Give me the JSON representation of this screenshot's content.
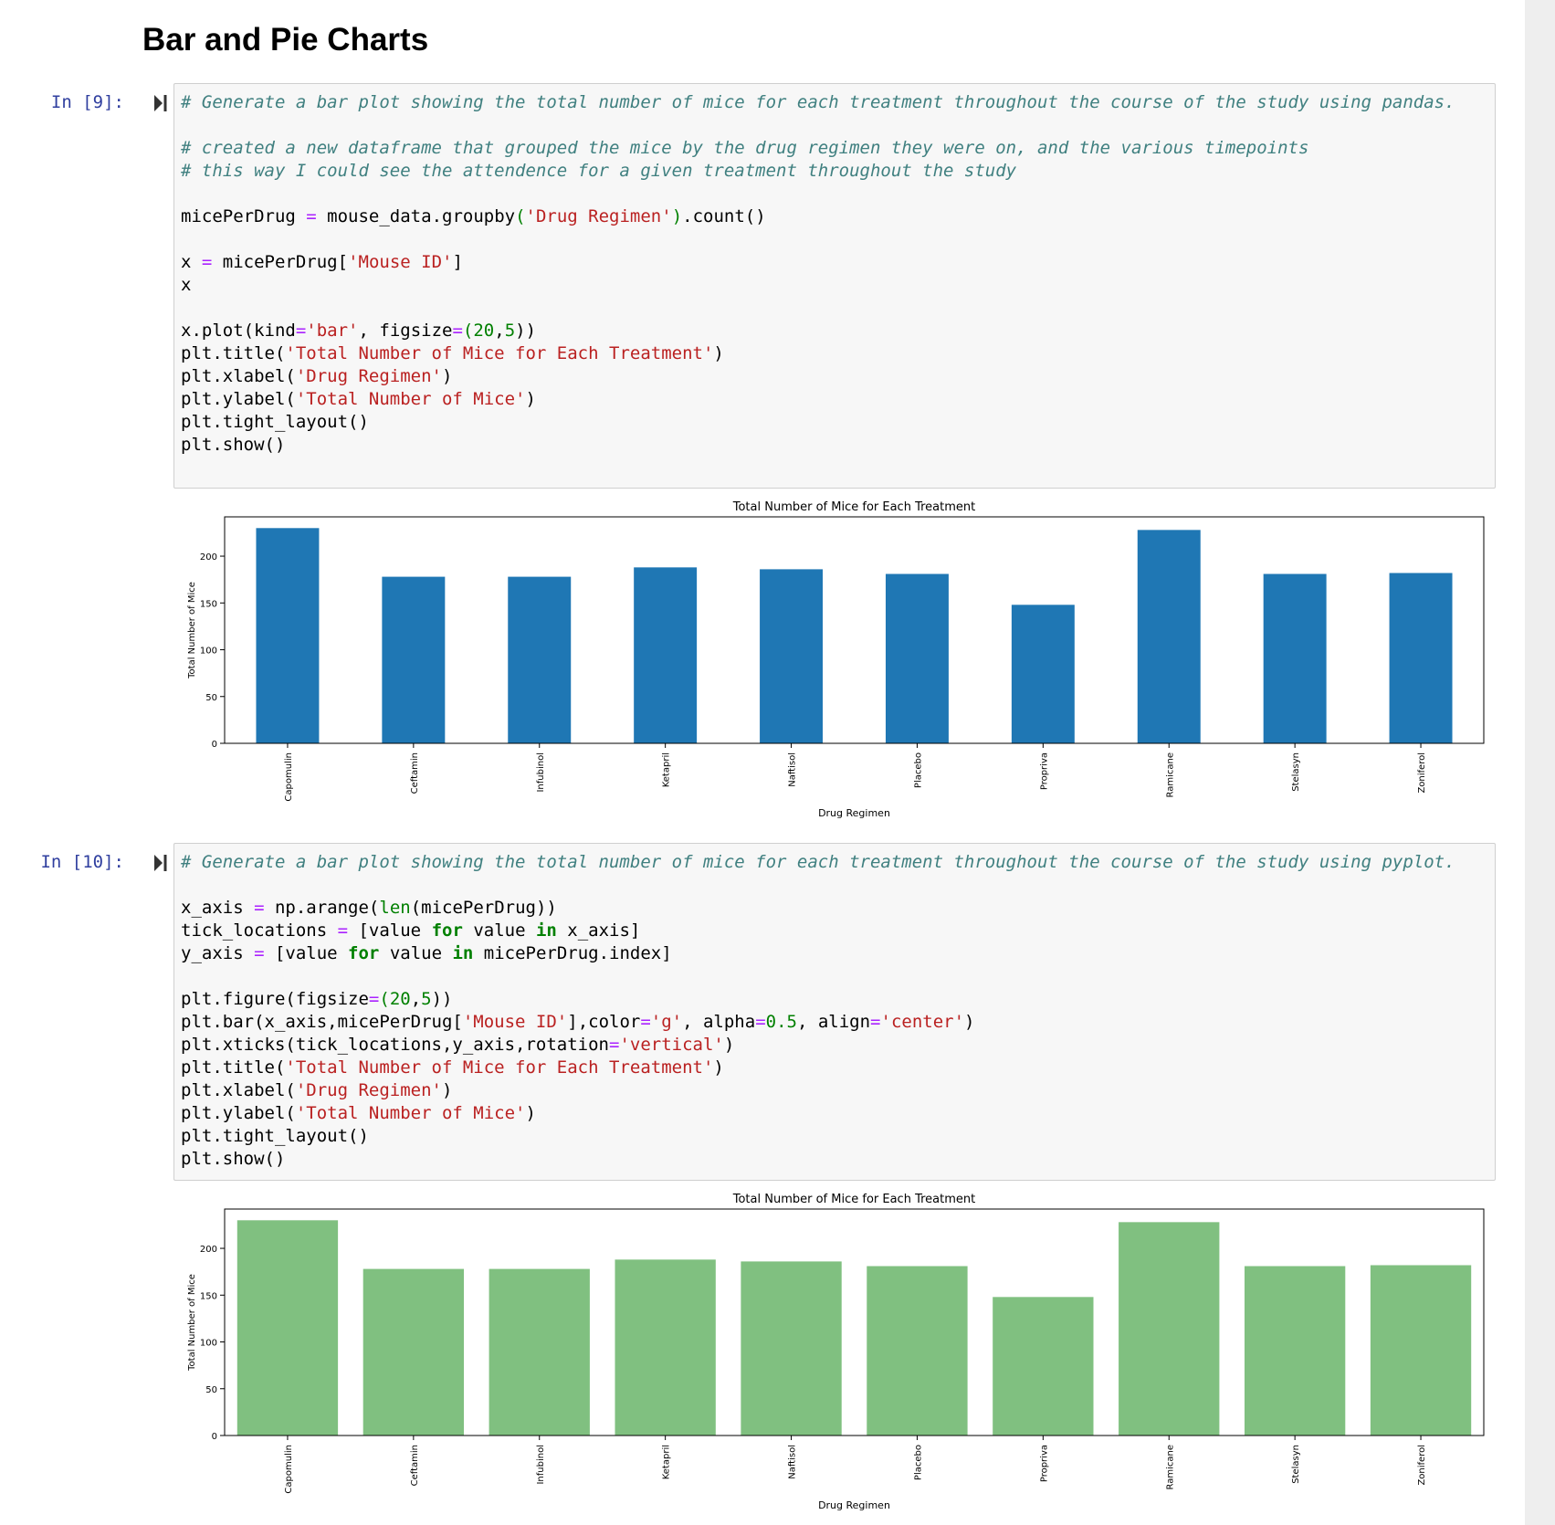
{
  "section_title": "Bar and Pie Charts",
  "cells": [
    {
      "prompt": "In [9]:",
      "code_lines": [
        [
          [
            "comment",
            "# Generate a bar plot showing the total number of mice for each treatment throughout the course of the study using pandas."
          ]
        ],
        [],
        [
          [
            "comment",
            "# created a new dataframe that grouped the mice by the drug regimen they were on, and the various timepoints"
          ]
        ],
        [
          [
            "comment",
            "# this way I could see the attendence for a given treatment throughout the study"
          ]
        ],
        [],
        [
          [
            "",
            "micePerDrug "
          ],
          [
            "op",
            "="
          ],
          [
            "",
            " mouse_data.groupby"
          ],
          [
            "num",
            "("
          ],
          [
            "str",
            "'Drug Regimen'"
          ],
          [
            "num",
            ")"
          ],
          [
            "",
            ".count()"
          ]
        ],
        [],
        [
          [
            "",
            "x "
          ],
          [
            "op",
            "="
          ],
          [
            "",
            " micePerDrug["
          ],
          [
            "str",
            "'Mouse ID'"
          ],
          [
            "",
            "]"
          ]
        ],
        [
          [
            "",
            "x"
          ]
        ],
        [],
        [
          [
            "",
            "x.plot(kind"
          ],
          [
            "op",
            "="
          ],
          [
            "str",
            "'bar'"
          ],
          [
            "",
            ", figsize"
          ],
          [
            "op",
            "="
          ],
          [
            "num",
            "("
          ],
          [
            "num",
            "20"
          ],
          [
            "",
            ","
          ],
          [
            "num",
            "5"
          ],
          [
            "",
            "))"
          ]
        ],
        [
          [
            "",
            "plt.title("
          ],
          [
            "str",
            "'Total Number of Mice for Each Treatment'"
          ],
          [
            "",
            ")"
          ]
        ],
        [
          [
            "",
            "plt.xlabel("
          ],
          [
            "str",
            "'Drug Regimen'"
          ],
          [
            "",
            ")"
          ]
        ],
        [
          [
            "",
            "plt.ylabel("
          ],
          [
            "str",
            "'Total Number of Mice'"
          ],
          [
            "",
            ")"
          ]
        ],
        [
          [
            "",
            "plt.tight_layout()"
          ]
        ],
        [
          [
            "",
            "plt.show()"
          ]
        ]
      ]
    },
    {
      "prompt": "In [10]:",
      "code_lines": [
        [
          [
            "comment",
            "# Generate a bar plot showing the total number of mice for each treatment throughout the course of the study using pyplot."
          ]
        ],
        [],
        [
          [
            "",
            "x_axis "
          ],
          [
            "op",
            "="
          ],
          [
            "",
            " np.arange("
          ],
          [
            "bi",
            "len"
          ],
          [
            "",
            "(micePerDrug))"
          ]
        ],
        [
          [
            "",
            "tick_locations "
          ],
          [
            "op",
            "="
          ],
          [
            "",
            " [value "
          ],
          [
            "kw",
            "for"
          ],
          [
            "",
            " value "
          ],
          [
            "kw",
            "in"
          ],
          [
            "",
            " x_axis]"
          ]
        ],
        [
          [
            "",
            "y_axis "
          ],
          [
            "op",
            "="
          ],
          [
            "",
            " [value "
          ],
          [
            "kw",
            "for"
          ],
          [
            "",
            " value "
          ],
          [
            "kw",
            "in"
          ],
          [
            "",
            " micePerDrug.index]"
          ]
        ],
        [],
        [
          [
            "",
            "plt.figure(figsize"
          ],
          [
            "op",
            "="
          ],
          [
            "num",
            "("
          ],
          [
            "num",
            "20"
          ],
          [
            "",
            ","
          ],
          [
            "num",
            "5"
          ],
          [
            "",
            "))"
          ]
        ],
        [
          [
            "",
            "plt.bar(x_axis,micePerDrug["
          ],
          [
            "str",
            "'Mouse ID'"
          ],
          [
            "",
            "],color"
          ],
          [
            "op",
            "="
          ],
          [
            "str",
            "'g'"
          ],
          [
            "",
            ", alpha"
          ],
          [
            "op",
            "="
          ],
          [
            "num",
            "0.5"
          ],
          [
            "",
            ", align"
          ],
          [
            "op",
            "="
          ],
          [
            "str",
            "'center'"
          ],
          [
            "",
            ")"
          ]
        ],
        [
          [
            "",
            "plt.xticks(tick_locations,y_axis,rotation"
          ],
          [
            "op",
            "="
          ],
          [
            "str",
            "'vertical'"
          ],
          [
            "",
            ")"
          ]
        ],
        [
          [
            "",
            "plt.title("
          ],
          [
            "str",
            "'Total Number of Mice for Each Treatment'"
          ],
          [
            "",
            ")"
          ]
        ],
        [
          [
            "",
            "plt.xlabel("
          ],
          [
            "str",
            "'Drug Regimen'"
          ],
          [
            "",
            ")"
          ]
        ],
        [
          [
            "",
            "plt.ylabel("
          ],
          [
            "str",
            "'Total Number of Mice'"
          ],
          [
            "",
            ")"
          ]
        ],
        [
          [
            "",
            "plt.tight_layout()"
          ]
        ],
        [
          [
            "",
            "plt.show()"
          ]
        ]
      ]
    }
  ],
  "chart_data": [
    {
      "type": "bar",
      "title": "Total Number of Mice for Each Treatment",
      "xlabel": "Drug Regimen",
      "ylabel": "Total Number of Mice",
      "categories": [
        "Capomulin",
        "Ceftamin",
        "Infubinol",
        "Ketapril",
        "Naftisol",
        "Placebo",
        "Propriva",
        "Ramicane",
        "Stelasyn",
        "Zoniferol"
      ],
      "values": [
        230,
        178,
        178,
        188,
        186,
        181,
        148,
        228,
        181,
        182
      ],
      "ylim": [
        0,
        242
      ],
      "yticks": [
        0,
        50,
        100,
        150,
        200
      ],
      "color": "#1f77b4",
      "bar_width": 0.5,
      "grid": false
    },
    {
      "type": "bar",
      "title": "Total Number of Mice for Each Treatment",
      "xlabel": "Drug Regimen",
      "ylabel": "Total Number of Mice",
      "categories": [
        "Capomulin",
        "Ceftamin",
        "Infubinol",
        "Ketapril",
        "Naftisol",
        "Placebo",
        "Propriva",
        "Ramicane",
        "Stelasyn",
        "Zoniferol"
      ],
      "values": [
        230,
        178,
        178,
        188,
        186,
        181,
        148,
        228,
        181,
        182
      ],
      "ylim": [
        0,
        242
      ],
      "yticks": [
        0,
        50,
        100,
        150,
        200
      ],
      "color": "#80c080",
      "bar_width": 0.8,
      "grid": false
    }
  ]
}
